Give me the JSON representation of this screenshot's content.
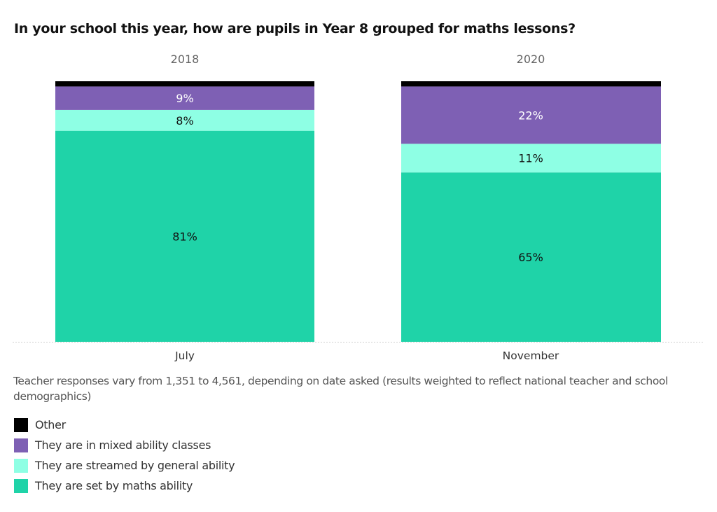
{
  "chart_data": {
    "type": "bar",
    "stacked": true,
    "title": "In your school this year, how are pupils in Year 8 grouped for maths lessons?",
    "panels": [
      {
        "year": "2018",
        "category": "July"
      },
      {
        "year": "2020",
        "category": "November"
      }
    ],
    "categories": [
      "July",
      "November"
    ],
    "series": [
      {
        "name": "They are set by maths ability",
        "color": "#1fd3a8",
        "values": [
          81,
          65
        ],
        "labels": [
          "81%",
          "65%"
        ],
        "label_color": "#111111"
      },
      {
        "name": "They are streamed by general ability",
        "color": "#8effe4",
        "values": [
          8,
          11
        ],
        "labels": [
          "8%",
          "11%"
        ],
        "label_color": "#111111"
      },
      {
        "name": "They are in mixed ability classes",
        "color": "#7e60b4",
        "values": [
          9,
          22
        ],
        "labels": [
          "9%",
          "22%"
        ],
        "label_color": "#ffffff"
      },
      {
        "name": "Other",
        "color": "#000000",
        "values": [
          2,
          2
        ],
        "labels": [
          "",
          ""
        ],
        "label_color": "#ffffff"
      }
    ],
    "ylim": [
      0,
      100
    ],
    "xlabel": "",
    "ylabel": "",
    "grid": false,
    "legend_position": "bottom-left"
  },
  "note": "Teacher responses vary from 1,351 to 4,561, depending on date asked (results weighted to reflect national teacher and school demographics)",
  "legend": [
    {
      "label": "Other",
      "color": "#000000"
    },
    {
      "label": "They are in mixed ability classes",
      "color": "#7e60b4"
    },
    {
      "label": "They are streamed by general ability",
      "color": "#8effe4"
    },
    {
      "label": "They are set by maths ability",
      "color": "#1fd3a8"
    }
  ]
}
